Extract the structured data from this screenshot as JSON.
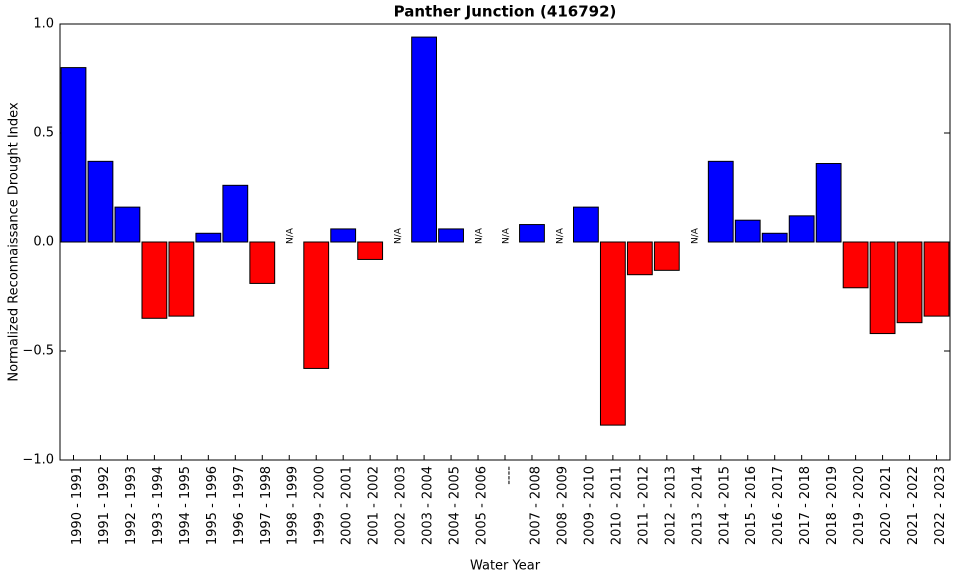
{
  "chart_data": {
    "type": "bar",
    "title": "Panther Junction (416792)",
    "x_label": "Water Year",
    "y_label": "Normalized Reconnaissance Drought Index",
    "categories": [
      "1990 - 1991",
      "1991 - 1992",
      "1992 - 1993",
      "1993 - 1994",
      "1994 - 1995",
      "1995 - 1996",
      "1996 - 1997",
      "1997 - 1998",
      "1998 - 1999",
      "1999 - 2000",
      "2000 - 2001",
      "2001 - 2002",
      "2002 - 2003",
      "2003 - 2004",
      "2004 - 2005",
      "2005 - 2006",
      "----",
      "2007 - 2008",
      "2008 - 2009",
      "2009 - 2010",
      "2010 - 2011",
      "2011 - 2012",
      "2012 - 2013",
      "2013 - 2014",
      "2014 - 2015",
      "2015 - 2016",
      "2016 - 2017",
      "2017 - 2018",
      "2018 - 2019",
      "2019 - 2020",
      "2020 - 2021",
      "2021 - 2022",
      "2022 - 2023"
    ],
    "values": [
      0.8,
      0.37,
      0.16,
      -0.35,
      -0.34,
      0.04,
      0.26,
      -0.19,
      null,
      -0.58,
      0.06,
      -0.08,
      null,
      0.94,
      0.06,
      null,
      null,
      0.08,
      null,
      0.16,
      -0.84,
      -0.15,
      -0.13,
      null,
      0.37,
      0.1,
      0.04,
      0.12,
      0.36,
      -0.21,
      -0.42,
      -0.37,
      -0.34
    ],
    "value_labels": [
      null,
      null,
      null,
      null,
      null,
      null,
      null,
      null,
      "N/A",
      null,
      null,
      null,
      "N/A",
      null,
      null,
      "N/A",
      "N/A",
      null,
      "N/A",
      null,
      null,
      null,
      null,
      "N/A",
      null,
      null,
      null,
      null,
      null,
      null,
      null,
      null,
      null
    ],
    "positive_color": "#0000ff",
    "negative_color": "#ff0000",
    "ylim": [
      -1.0,
      1.0
    ],
    "yticks": [
      {
        "value": -1.0,
        "label": "−1.0"
      },
      {
        "value": -0.5,
        "label": "−0.5"
      },
      {
        "value": 0.0,
        "label": "0.0"
      },
      {
        "value": 0.5,
        "label": "0.5"
      },
      {
        "value": 1.0,
        "label": "1.0"
      }
    ],
    "grid": false
  }
}
